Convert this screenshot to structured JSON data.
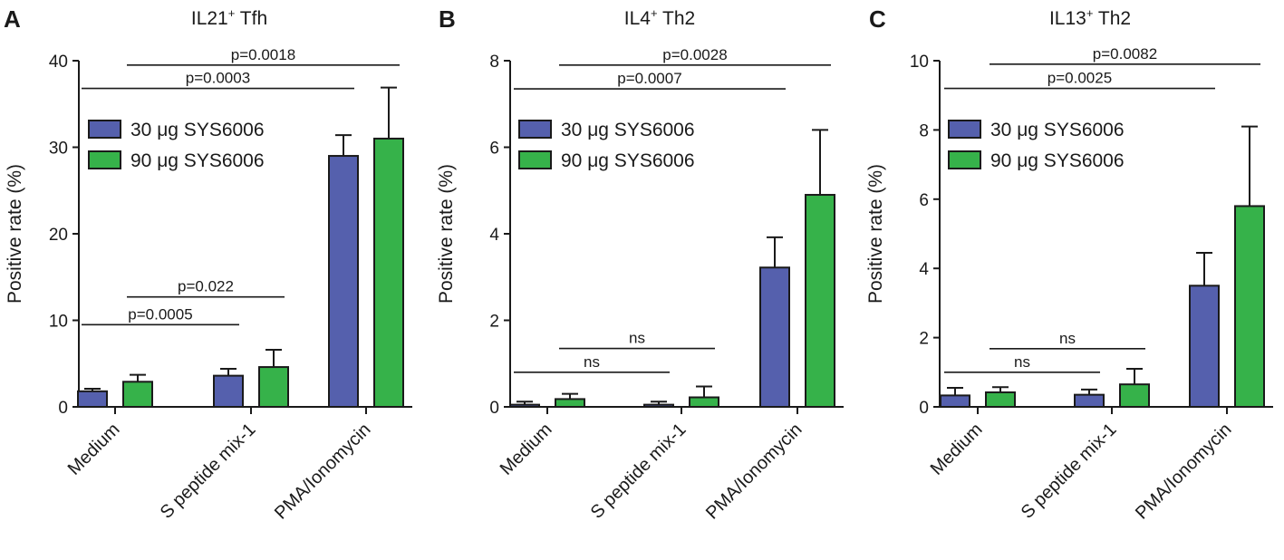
{
  "colors": {
    "series_1": "#5560ad",
    "series_2": "#36b24a",
    "axis": "#1a1a1a"
  },
  "chart_data": [
    {
      "panel": "A",
      "type": "bar",
      "title_main": "IL21",
      "title_sup": "+",
      "title_rest": " Tfh",
      "ylabel": "Positive rate (%)",
      "ylim": [
        0,
        40
      ],
      "yticks": [
        0,
        10,
        20,
        30,
        40
      ],
      "categories": [
        "Medium",
        "S peptide mix-1",
        "PMA/Ionomycin"
      ],
      "series": [
        {
          "name": "30 μg SYS6006",
          "values": [
            1.8,
            3.6,
            29.0
          ],
          "errors": [
            0.3,
            0.8,
            2.4
          ]
        },
        {
          "name": "90 μg SYS6006",
          "values": [
            2.9,
            4.6,
            31.0
          ],
          "errors": [
            0.8,
            2.0,
            5.9
          ]
        }
      ],
      "comparisons": [
        {
          "label": "p=0.0018",
          "from": [
            0,
            1
          ],
          "to": [
            2,
            1
          ],
          "y": 39.5
        },
        {
          "label": "p=0.0003",
          "from": [
            0,
            0
          ],
          "to": [
            2,
            0
          ],
          "y": 36.8
        },
        {
          "label": "p=0.022",
          "from": [
            0,
            1
          ],
          "to": [
            1,
            1
          ],
          "y": 12.7
        },
        {
          "label": "p=0.0005",
          "from": [
            0,
            0
          ],
          "to": [
            1,
            0
          ],
          "y": 9.5
        }
      ]
    },
    {
      "panel": "B",
      "type": "bar",
      "title_main": "IL4",
      "title_sup": "+",
      "title_rest": " Th2",
      "ylabel": "Positive rate (%)",
      "ylim": [
        0,
        8
      ],
      "yticks": [
        0,
        2,
        4,
        6,
        8
      ],
      "categories": [
        "Medium",
        "S peptide mix-1",
        "PMA/Ionomycin"
      ],
      "series": [
        {
          "name": "30 μg SYS6006",
          "values": [
            0.05,
            0.05,
            3.22
          ],
          "errors": [
            0.07,
            0.07,
            0.7
          ]
        },
        {
          "name": "90 μg SYS6006",
          "values": [
            0.18,
            0.22,
            4.9
          ],
          "errors": [
            0.12,
            0.25,
            1.5
          ]
        }
      ],
      "comparisons": [
        {
          "label": "p=0.0028",
          "from": [
            0,
            1
          ],
          "to": [
            2,
            1
          ],
          "y": 7.9
        },
        {
          "label": "p=0.0007",
          "from": [
            0,
            0
          ],
          "to": [
            2,
            0
          ],
          "y": 7.35
        },
        {
          "label": "ns",
          "from": [
            0,
            1
          ],
          "to": [
            1,
            1
          ],
          "y": 1.35
        },
        {
          "label": "ns",
          "from": [
            0,
            0
          ],
          "to": [
            1,
            0
          ],
          "y": 0.8
        }
      ]
    },
    {
      "panel": "C",
      "type": "bar",
      "title_main": "IL13",
      "title_sup": "+",
      "title_rest": " Th2",
      "ylabel": "Positive rate (%)",
      "ylim": [
        0,
        10
      ],
      "yticks": [
        0,
        2,
        4,
        6,
        8,
        10
      ],
      "categories": [
        "Medium",
        "S peptide mix-1",
        "PMA/Ionomycin"
      ],
      "series": [
        {
          "name": "30 μg SYS6006",
          "values": [
            0.33,
            0.35,
            3.5
          ],
          "errors": [
            0.22,
            0.15,
            0.95
          ]
        },
        {
          "name": "90 μg SYS6006",
          "values": [
            0.42,
            0.65,
            5.8
          ],
          "errors": [
            0.15,
            0.45,
            2.3
          ]
        }
      ],
      "comparisons": [
        {
          "label": "p=0.0082",
          "from": [
            0,
            1
          ],
          "to": [
            2,
            1
          ],
          "y": 9.9
        },
        {
          "label": "p=0.0025",
          "from": [
            0,
            0
          ],
          "to": [
            2,
            0
          ],
          "y": 9.2
        },
        {
          "label": "ns",
          "from": [
            0,
            1
          ],
          "to": [
            1,
            1
          ],
          "y": 1.68
        },
        {
          "label": "ns",
          "from": [
            0,
            0
          ],
          "to": [
            1,
            0
          ],
          "y": 1.0
        }
      ]
    }
  ]
}
